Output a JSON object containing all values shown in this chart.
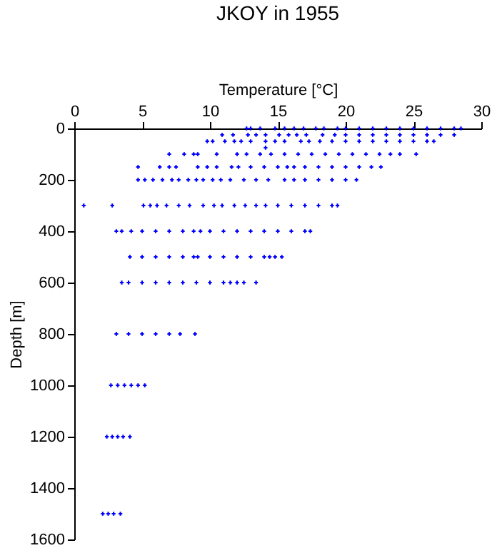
{
  "chart_data": {
    "type": "scatter",
    "title": "JKOY in 1955",
    "xlabel": "Temperature [°C]",
    "ylabel": "Depth [m]",
    "xlim": [
      0,
      30
    ],
    "xticks": [
      0,
      5,
      10,
      15,
      20,
      25,
      30
    ],
    "ylim": [
      1600,
      0
    ],
    "yticks": [
      0,
      200,
      400,
      600,
      800,
      1000,
      1200,
      1400,
      1600
    ],
    "grid": false,
    "legend": false,
    "marker": "cross",
    "series": [
      {
        "color": "#0000ff",
        "x": [
          12.7,
          13,
          13.7,
          14.8,
          15.5,
          16.2,
          16.9,
          17.8,
          18.4,
          19.4,
          20,
          21,
          22,
          23,
          24,
          25,
          26,
          27,
          28,
          28.5
        ],
        "values": [
          0,
          0,
          0,
          0,
          0,
          0,
          0,
          0,
          0,
          0,
          0,
          0,
          0,
          0,
          0,
          0,
          0,
          0,
          0,
          0
        ]
      },
      {
        "color": "#0000ff",
        "x": [
          10.9,
          11.7,
          12.8,
          13.4,
          14.1,
          15.1,
          15.8,
          16.4,
          17.1,
          18.3,
          19.2,
          20,
          21,
          22,
          23,
          24,
          25,
          26,
          27,
          28
        ],
        "values": [
          25,
          25,
          25,
          25,
          25,
          25,
          25,
          25,
          25,
          25,
          25,
          25,
          25,
          25,
          25,
          25,
          25,
          25,
          25,
          25
        ]
      },
      {
        "color": "#0000ff",
        "x": [
          9.8,
          10.2,
          11.1,
          11.8,
          12.3,
          13,
          14.1,
          14.8,
          15.5,
          16.7,
          17.3,
          18.1,
          19,
          20,
          21,
          22,
          23,
          24,
          25,
          26,
          26.5
        ],
        "values": [
          50,
          50,
          50,
          50,
          50,
          50,
          50,
          50,
          50,
          50,
          50,
          50,
          50,
          50,
          50,
          50,
          50,
          50,
          50,
          50,
          50
        ]
      },
      {
        "color": "#0000ff",
        "x": [
          14.1
        ],
        "values": [
          75
        ]
      },
      {
        "color": "#0000ff",
        "x": [
          7,
          8.1,
          8.8,
          9.1,
          10.5,
          12,
          12.7,
          13.7,
          14.5,
          15.5,
          16.5,
          17.5,
          18.5,
          19.5,
          20.5,
          21.5,
          22.5,
          23.3,
          24,
          25.2
        ],
        "values": [
          100,
          100,
          100,
          100,
          100,
          100,
          100,
          100,
          100,
          100,
          100,
          100,
          100,
          100,
          100,
          100,
          100,
          100,
          100,
          100
        ]
      },
      {
        "color": "#0000ff",
        "x": [
          4.7,
          6.3,
          7,
          7.5,
          9.1,
          9.8,
          10.5,
          11.6,
          12.1,
          13,
          14,
          15,
          15.7,
          16.2,
          17,
          18,
          19,
          20,
          21,
          21.9,
          22.6
        ],
        "values": [
          150,
          150,
          150,
          150,
          150,
          150,
          150,
          150,
          150,
          150,
          150,
          150,
          150,
          150,
          150,
          150,
          150,
          150,
          150,
          150,
          150
        ]
      },
      {
        "color": "#0000ff",
        "x": [
          4.7,
          5.2,
          5.8,
          6.5,
          7.2,
          7.7,
          8.4,
          9,
          9.5,
          10.2,
          10.8,
          11.5,
          12.5,
          13.4,
          14.3,
          15.5,
          16.2,
          17,
          18,
          19,
          20,
          20.8
        ],
        "values": [
          200,
          200,
          200,
          200,
          200,
          200,
          200,
          200,
          200,
          200,
          200,
          200,
          200,
          200,
          200,
          200,
          200,
          200,
          200,
          200,
          200,
          200
        ]
      },
      {
        "color": "#0000ff",
        "x": [
          0.7,
          2.8,
          5.1,
          5.6,
          6.1,
          6.8,
          7.7,
          8.5,
          9.5,
          10.3,
          10.9,
          11.8,
          12.6,
          13.4,
          14.1,
          15,
          16,
          17,
          18,
          19,
          19.4
        ],
        "values": [
          300,
          300,
          300,
          300,
          300,
          300,
          300,
          300,
          300,
          300,
          300,
          300,
          300,
          300,
          300,
          300,
          300,
          300,
          300,
          300,
          300
        ]
      },
      {
        "color": "#0000ff",
        "x": [
          3.1,
          3.5,
          4.2,
          5,
          6,
          7,
          8,
          8.8,
          9.3,
          10,
          11,
          12,
          13,
          14,
          15,
          16,
          17,
          17.4
        ],
        "values": [
          400,
          400,
          400,
          400,
          400,
          400,
          400,
          400,
          400,
          400,
          400,
          400,
          400,
          400,
          400,
          400,
          400,
          400
        ]
      },
      {
        "color": "#0000ff",
        "x": [
          4.1,
          5,
          6,
          7,
          8,
          8.8,
          9.1,
          10,
          11,
          12,
          13,
          14,
          14.4,
          14.8,
          15.3
        ],
        "values": [
          500,
          500,
          500,
          500,
          500,
          500,
          500,
          500,
          500,
          500,
          500,
          500,
          500,
          500,
          500
        ]
      },
      {
        "color": "#0000ff",
        "x": [
          3.5,
          4,
          5,
          6,
          7,
          8,
          9,
          10,
          11,
          11.5,
          12,
          12.5,
          13.4
        ],
        "values": [
          600,
          600,
          600,
          600,
          600,
          600,
          600,
          600,
          600,
          600,
          600,
          600,
          600
        ]
      },
      {
        "color": "#0000ff",
        "x": [
          3.1,
          4,
          5,
          6,
          7,
          7.8,
          8.9
        ],
        "values": [
          800,
          800,
          800,
          800,
          800,
          800,
          800
        ]
      },
      {
        "color": "#0000ff",
        "x": [
          2.7,
          3.2,
          3.7,
          4.2,
          4.7,
          5.2
        ],
        "values": [
          1000,
          1000,
          1000,
          1000,
          1000,
          1000
        ]
      },
      {
        "color": "#0000ff",
        "x": [
          2.4,
          2.8,
          3.2,
          3.6,
          4.1
        ],
        "values": [
          1200,
          1200,
          1200,
          1200,
          1200
        ]
      },
      {
        "color": "#0000ff",
        "x": [
          2.1,
          2.5,
          2.9,
          3.4
        ],
        "values": [
          1500,
          1500,
          1500,
          1500
        ]
      }
    ]
  }
}
